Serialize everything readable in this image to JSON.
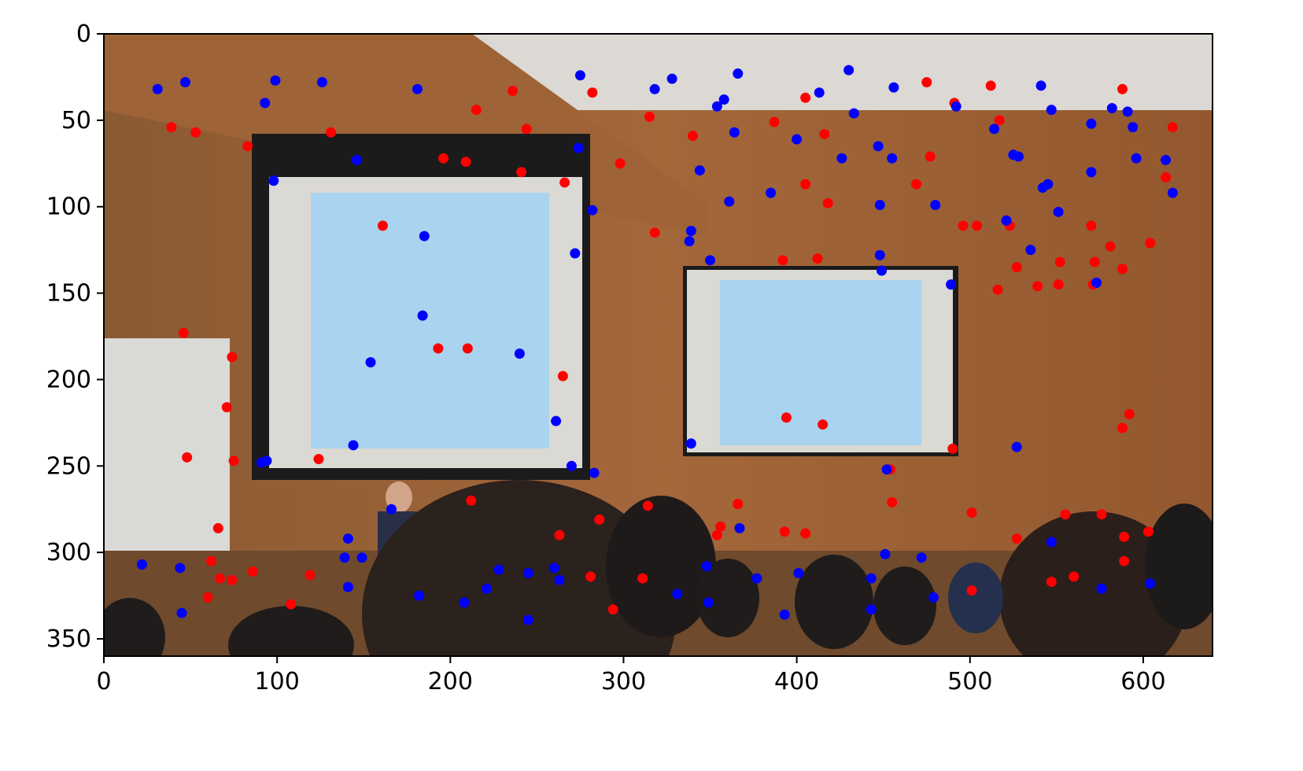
{
  "chart_data": {
    "type": "scatter",
    "title": "",
    "xlabel": "",
    "ylabel": "",
    "xlim": [
      0,
      640
    ],
    "ylim": [
      360,
      0
    ],
    "y_inverted": true,
    "grid": false,
    "legend": "none",
    "background": "photograph of a lecture hall: two projection screens showing the slide 'Image reprojection', lecturer at left, wooden paneled walls, ceiling lights, audience heads in foreground",
    "x_ticks": [
      {
        "value": 0,
        "label": "0"
      },
      {
        "value": 100,
        "label": "100"
      },
      {
        "value": 200,
        "label": "200"
      },
      {
        "value": 300,
        "label": "300"
      },
      {
        "value": 400,
        "label": "400"
      },
      {
        "value": 500,
        "label": "500"
      },
      {
        "value": 600,
        "label": "600"
      }
    ],
    "y_ticks": [
      {
        "value": 0,
        "label": "0"
      },
      {
        "value": 50,
        "label": "50"
      },
      {
        "value": 100,
        "label": "100"
      },
      {
        "value": 150,
        "label": "150"
      },
      {
        "value": 200,
        "label": "200"
      },
      {
        "value": 250,
        "label": "250"
      },
      {
        "value": 300,
        "label": "300"
      },
      {
        "value": 350,
        "label": "350"
      }
    ],
    "series": [
      {
        "color": "#ff0000",
        "points": [
          [
            39,
            54
          ],
          [
            53,
            57
          ],
          [
            83,
            65
          ],
          [
            46,
            173
          ],
          [
            74,
            187
          ],
          [
            71,
            216
          ],
          [
            48,
            245
          ],
          [
            75,
            247
          ],
          [
            124,
            246
          ],
          [
            131,
            57
          ],
          [
            161,
            111
          ],
          [
            196,
            72
          ],
          [
            209,
            74
          ],
          [
            215,
            44
          ],
          [
            236,
            33
          ],
          [
            241,
            80
          ],
          [
            244,
            55
          ],
          [
            266,
            86
          ],
          [
            282,
            34
          ],
          [
            298,
            75
          ],
          [
            193,
            182
          ],
          [
            210,
            182
          ],
          [
            265,
            198
          ],
          [
            315,
            48
          ],
          [
            318,
            115
          ],
          [
            340,
            59
          ],
          [
            387,
            51
          ],
          [
            392,
            131
          ],
          [
            405,
            37
          ],
          [
            405,
            87
          ],
          [
            412,
            130
          ],
          [
            416,
            58
          ],
          [
            418,
            98
          ],
          [
            475,
            28
          ],
          [
            477,
            71
          ],
          [
            469,
            87
          ],
          [
            491,
            40
          ],
          [
            496,
            111
          ],
          [
            504,
            111
          ],
          [
            512,
            30
          ],
          [
            517,
            50
          ],
          [
            516,
            148
          ],
          [
            523,
            111
          ],
          [
            527,
            135
          ],
          [
            539,
            146
          ],
          [
            551,
            145
          ],
          [
            552,
            132
          ],
          [
            570,
            111
          ],
          [
            572,
            132
          ],
          [
            571,
            145
          ],
          [
            581,
            123
          ],
          [
            588,
            32
          ],
          [
            588,
            136
          ],
          [
            613,
            83
          ],
          [
            617,
            54
          ],
          [
            604,
            121
          ],
          [
            394,
            222
          ],
          [
            415,
            226
          ],
          [
            490,
            240
          ],
          [
            454,
            252
          ],
          [
            455,
            271
          ],
          [
            501,
            277
          ],
          [
            527,
            292
          ],
          [
            555,
            278
          ],
          [
            576,
            278
          ],
          [
            589,
            291
          ],
          [
            589,
            305
          ],
          [
            592,
            220
          ],
          [
            588,
            228
          ],
          [
            603,
            288
          ],
          [
            547,
            317
          ],
          [
            560,
            314
          ],
          [
            501,
            322
          ],
          [
            66,
            286
          ],
          [
            62,
            305
          ],
          [
            67,
            315
          ],
          [
            74,
            316
          ],
          [
            60,
            326
          ],
          [
            86,
            311
          ],
          [
            108,
            330
          ],
          [
            119,
            313
          ],
          [
            212,
            270
          ],
          [
            263,
            290
          ],
          [
            281,
            314
          ],
          [
            286,
            281
          ],
          [
            294,
            333
          ],
          [
            311,
            315
          ],
          [
            314,
            273
          ],
          [
            354,
            290
          ],
          [
            356,
            285
          ],
          [
            366,
            272
          ],
          [
            393,
            288
          ],
          [
            405,
            289
          ]
        ]
      },
      {
        "color": "#0000ff",
        "points": [
          [
            31,
            32
          ],
          [
            47,
            28
          ],
          [
            93,
            40
          ],
          [
            99,
            27
          ],
          [
            126,
            28
          ],
          [
            181,
            32
          ],
          [
            146,
            73
          ],
          [
            98,
            85
          ],
          [
            185,
            117
          ],
          [
            184,
            163
          ],
          [
            154,
            190
          ],
          [
            240,
            185
          ],
          [
            261,
            224
          ],
          [
            270,
            250
          ],
          [
            283,
            254
          ],
          [
            91,
            248
          ],
          [
            94,
            247
          ],
          [
            144,
            238
          ],
          [
            274,
            66
          ],
          [
            275,
            24
          ],
          [
            282,
            102
          ],
          [
            272,
            127
          ],
          [
            318,
            32
          ],
          [
            328,
            26
          ],
          [
            344,
            79
          ],
          [
            339,
            114
          ],
          [
            338,
            120
          ],
          [
            350,
            131
          ],
          [
            354,
            42
          ],
          [
            358,
            38
          ],
          [
            366,
            23
          ],
          [
            364,
            57
          ],
          [
            361,
            97
          ],
          [
            385,
            92
          ],
          [
            400,
            61
          ],
          [
            413,
            34
          ],
          [
            426,
            72
          ],
          [
            430,
            21
          ],
          [
            433,
            46
          ],
          [
            447,
            65
          ],
          [
            455,
            72
          ],
          [
            456,
            31
          ],
          [
            448,
            99
          ],
          [
            448,
            128
          ],
          [
            449,
            137
          ],
          [
            480,
            99
          ],
          [
            489,
            145
          ],
          [
            492,
            42
          ],
          [
            514,
            55
          ],
          [
            521,
            108
          ],
          [
            525,
            70
          ],
          [
            528,
            71
          ],
          [
            535,
            125
          ],
          [
            541,
            30
          ],
          [
            542,
            89
          ],
          [
            545,
            87
          ],
          [
            547,
            44
          ],
          [
            551,
            103
          ],
          [
            570,
            80
          ],
          [
            570,
            52
          ],
          [
            573,
            144
          ],
          [
            582,
            43
          ],
          [
            591,
            45
          ],
          [
            594,
            54
          ],
          [
            596,
            72
          ],
          [
            613,
            73
          ],
          [
            617,
            92
          ],
          [
            339,
            237
          ],
          [
            452,
            252
          ],
          [
            527,
            239
          ],
          [
            547,
            294
          ],
          [
            576,
            321
          ],
          [
            604,
            318
          ],
          [
            22,
            307
          ],
          [
            44,
            309
          ],
          [
            45,
            335
          ],
          [
            139,
            303
          ],
          [
            141,
            292
          ],
          [
            141,
            320
          ],
          [
            149,
            303
          ],
          [
            166,
            275
          ],
          [
            182,
            325
          ],
          [
            208,
            329
          ],
          [
            221,
            321
          ],
          [
            228,
            310
          ],
          [
            245,
            312
          ],
          [
            245,
            339
          ],
          [
            260,
            309
          ],
          [
            263,
            316
          ],
          [
            331,
            324
          ],
          [
            348,
            308
          ],
          [
            349,
            329
          ],
          [
            367,
            286
          ],
          [
            377,
            315
          ],
          [
            393,
            336
          ],
          [
            401,
            312
          ],
          [
            443,
            315
          ],
          [
            443,
            333
          ],
          [
            451,
            301
          ],
          [
            472,
            303
          ],
          [
            479,
            326
          ]
        ]
      }
    ]
  }
}
